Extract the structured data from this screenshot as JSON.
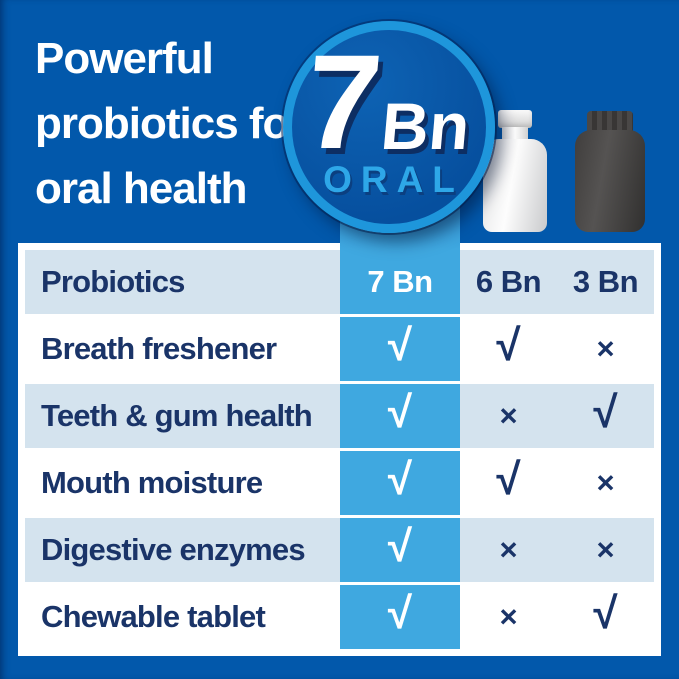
{
  "page": {
    "title_lines": [
      "Powerful",
      "probiotics for",
      "oral health"
    ]
  },
  "badge": {
    "number": "7",
    "unit": "Bn",
    "label": "ORAL"
  },
  "bottles": {
    "white_bottle": "white-pill-bottle",
    "dark_bottle": "dark-pill-bottle"
  },
  "colors": {
    "background": "#0258AB",
    "accent_column": "#3FA8E0",
    "column_band": "#2F8FD2",
    "row_shaded": "#D4E3EE",
    "row_light": "#FFFFFF",
    "text_navy": "#1A3468",
    "badge_ring": "#1E96DB",
    "oral_label": "#2EA7E8"
  },
  "table": {
    "header": {
      "row_label": "Probiotics",
      "col7": "7 Bn",
      "col6": "6 Bn",
      "col3": "3 Bn"
    },
    "rows": [
      {
        "label": "Breath freshener",
        "c7": "√",
        "c6": "√",
        "c3": "×"
      },
      {
        "label": "Teeth & gum health",
        "c7": "√",
        "c6": "×",
        "c3": "√"
      },
      {
        "label": "Mouth moisture",
        "c7": "√",
        "c6": "√",
        "c3": "×"
      },
      {
        "label": "Digestive enzymes",
        "c7": "√",
        "c6": "×",
        "c3": "×"
      },
      {
        "label": "Chewable tablet",
        "c7": "√",
        "c6": "×",
        "c3": "√"
      }
    ]
  },
  "chart_data": {
    "type": "table",
    "title": "Powerful probiotics for oral health",
    "columns": [
      "Probiotics",
      "7 Bn",
      "6 Bn",
      "3 Bn"
    ],
    "highlighted_column": "7 Bn",
    "rows": [
      {
        "feature": "Breath freshener",
        "7 Bn": true,
        "6 Bn": true,
        "3 Bn": false
      },
      {
        "feature": "Teeth & gum health",
        "7 Bn": true,
        "6 Bn": false,
        "3 Bn": true
      },
      {
        "feature": "Mouth moisture",
        "7 Bn": true,
        "6 Bn": true,
        "3 Bn": false
      },
      {
        "feature": "Digestive enzymes",
        "7 Bn": true,
        "6 Bn": false,
        "3 Bn": false
      },
      {
        "feature": "Chewable tablet",
        "7 Bn": true,
        "6 Bn": false,
        "3 Bn": true
      }
    ]
  }
}
